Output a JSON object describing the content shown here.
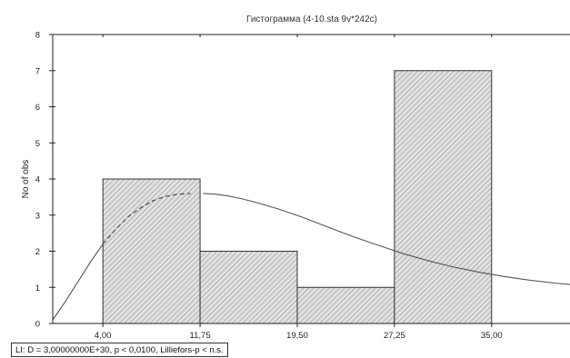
{
  "chart_data": {
    "type": "bar",
    "title": "Гистограмма (4-10.sta 9v*242c)",
    "xlabel": "",
    "ylabel": "No of obs",
    "x_ticks": [
      "4,00",
      "11,75",
      "19,50",
      "27,25",
      "35,00"
    ],
    "x_tick_values": [
      4.0,
      11.75,
      19.5,
      27.25,
      35.0
    ],
    "bin_edges": [
      4.0,
      11.75,
      19.5,
      27.25,
      35.0
    ],
    "values": [
      4,
      2,
      1,
      7
    ],
    "xlim": [
      0,
      41.25
    ],
    "ylim": [
      0,
      8
    ],
    "y_ticks": [
      0,
      1,
      2,
      3,
      4,
      5,
      6,
      7,
      8
    ],
    "normal_curve": {
      "x": [
        0,
        1,
        2,
        3,
        4,
        5,
        6,
        7,
        8,
        9,
        10,
        11,
        12,
        13,
        14,
        15,
        16,
        18,
        20,
        22,
        24,
        26,
        28,
        30,
        32,
        34,
        36,
        38,
        40,
        41.25
      ],
      "y": [
        0.1,
        0.6,
        1.15,
        1.7,
        2.2,
        2.6,
        2.95,
        3.2,
        3.4,
        3.52,
        3.58,
        3.6,
        3.6,
        3.58,
        3.53,
        3.46,
        3.37,
        3.17,
        2.93,
        2.66,
        2.4,
        2.16,
        1.93,
        1.73,
        1.56,
        1.42,
        1.3,
        1.2,
        1.12,
        1.08
      ]
    },
    "grid": false,
    "bar_fill": "#d9d9d9",
    "hatch_color": "#9a9a9a",
    "curve_color": "#555555"
  },
  "stats_text": "LI:  D = 3,00000000E+30, p < 0,0100, Lilliefors-p < n.s."
}
